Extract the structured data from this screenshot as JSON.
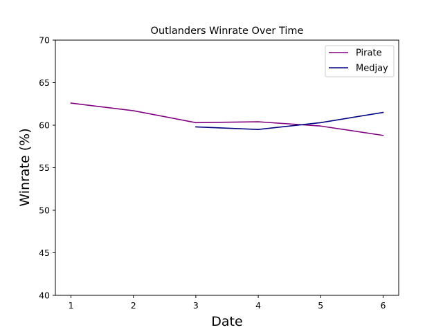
{
  "chart_data": {
    "type": "line",
    "title": "Outlanders Winrate Over Time",
    "xlabel": "Date",
    "ylabel": "Winrate (%)",
    "xlim": [
      0.75,
      6.25
    ],
    "ylim": [
      40,
      70
    ],
    "xticks": [
      1,
      2,
      3,
      4,
      5,
      6
    ],
    "yticks": [
      40,
      45,
      50,
      55,
      60,
      65,
      70
    ],
    "grid": false,
    "legend_position": "top-right",
    "series": [
      {
        "name": "Pirate",
        "color": "#800080",
        "x": [
          1,
          2,
          3,
          4,
          5,
          6
        ],
        "y": [
          62.6,
          61.7,
          60.3,
          60.4,
          59.9,
          58.8
        ]
      },
      {
        "name": "Medjay",
        "color": "#000080",
        "x": [
          3,
          4,
          5,
          6
        ],
        "y": [
          59.8,
          59.5,
          60.3,
          61.5
        ]
      }
    ]
  }
}
